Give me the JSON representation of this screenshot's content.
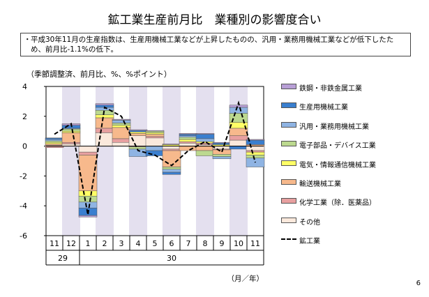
{
  "title": "鉱工業生産前月比　業種別の影響度合い",
  "summary": {
    "bullet": "・",
    "text": "平成30年11月の生産指数は、生産用機械工業などが上昇したものの、汎用・業務用機械工業などが低下したため、前月比-1.1%の低下。"
  },
  "unit_label": "（季節調整済、前月比、%、%ポイント）",
  "page_number": "6",
  "chart_data": {
    "type": "bar",
    "stacked": true,
    "ylim": [
      -6,
      4
    ],
    "yticks": [
      "4",
      "2",
      "0",
      "-2",
      "-4",
      "-6"
    ],
    "categories": [
      "11",
      "12",
      "1",
      "2",
      "3",
      "4",
      "5",
      "6",
      "7",
      "8",
      "9",
      "10",
      "11"
    ],
    "year_labels": [
      {
        "label": "29",
        "from": 0,
        "to": 1
      },
      {
        "label": "30",
        "from": 2,
        "to": 12
      }
    ],
    "x_unit": "（月／年）",
    "shaded_categories": [
      1,
      3,
      5,
      7,
      9,
      11
    ],
    "series": [
      {
        "name": "その他",
        "color": "#fbe9dc",
        "values": [
          0.05,
          0.15,
          -0.4,
          0.9,
          0.25,
          0.7,
          0.55,
          -0.2,
          0.2,
          0.1,
          -0.2,
          0.4,
          -0.3
        ]
      },
      {
        "name": "化学工業（除．医薬品）",
        "color": "#e8a0a0",
        "values": [
          -0.1,
          0.1,
          -0.2,
          0.3,
          0.25,
          -0.05,
          0.1,
          -0.1,
          0.1,
          0.1,
          -0.05,
          0.3,
          -0.1
        ]
      },
      {
        "name": "輸送機械工業",
        "color": "#f7b98c",
        "values": [
          0.1,
          0.65,
          -2.4,
          0.7,
          0.75,
          0.15,
          0.15,
          -1.1,
          -0.3,
          -0.3,
          -0.3,
          0.5,
          0.1
        ]
      },
      {
        "name": "電気・情報通信機械工業",
        "color": "#ffff66",
        "values": [
          0.1,
          0.1,
          -0.35,
          0.2,
          0.15,
          0.1,
          0.1,
          0.1,
          0.15,
          0.1,
          0.1,
          0.4,
          -0.2
        ]
      },
      {
        "name": "電子部品・デバイス工業",
        "color": "#bcd98f",
        "values": [
          0.1,
          0.15,
          -0.4,
          0.3,
          0.15,
          -0.15,
          0.1,
          -0.15,
          0.15,
          -0.35,
          -0.15,
          0.6,
          -0.2
        ]
      },
      {
        "name": "汎用・業務用機械工業",
        "color": "#8fb4e3",
        "values": [
          0.1,
          0.05,
          -0.4,
          0.2,
          0.2,
          -0.5,
          -0.3,
          -0.2,
          0.1,
          0.2,
          -0.15,
          0.4,
          -0.6
        ]
      },
      {
        "name": "生産用機械工業",
        "color": "#3a7fcf",
        "values": [
          0.1,
          0.2,
          -0.5,
          0.15,
          0.0,
          0.1,
          -0.35,
          -0.15,
          0.1,
          0.3,
          0.1,
          -0.2,
          0.3
        ]
      },
      {
        "name": "鉄鋼・非鉄金属工業",
        "color": "#b89fd6",
        "values": [
          0.0,
          0.1,
          -0.1,
          0.1,
          0.05,
          0.05,
          0.05,
          0.05,
          0.05,
          0.05,
          0.05,
          0.15,
          0.05
        ]
      }
    ],
    "line": {
      "name": "鉱工業",
      "values": [
        0.8,
        1.5,
        -4.6,
        2.6,
        2.0,
        -0.3,
        -0.6,
        -1.3,
        -0.3,
        0.3,
        -0.4,
        2.9,
        -1.1
      ]
    }
  }
}
